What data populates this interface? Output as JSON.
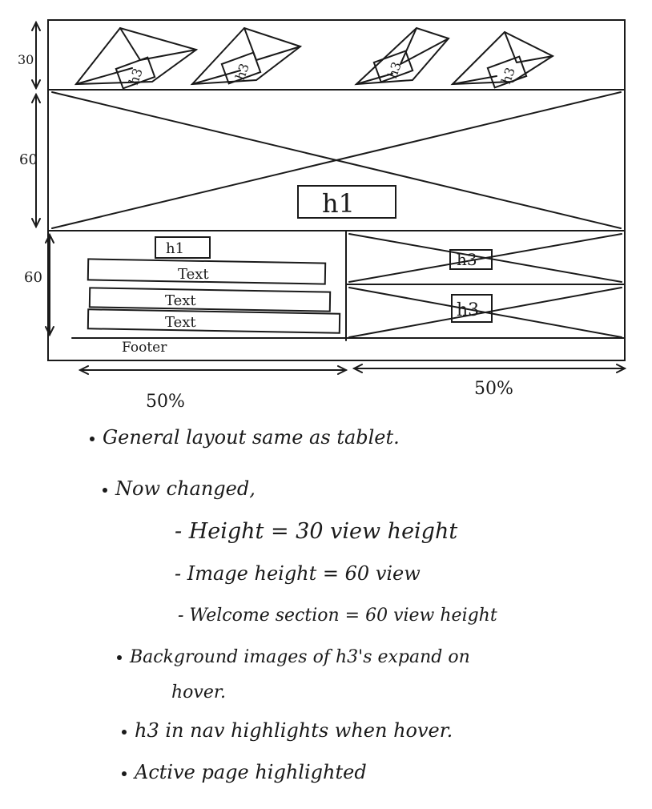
{
  "dimensions": {
    "nav": "30",
    "hero": "60",
    "welcome": "60"
  },
  "nav_items": [
    "h3",
    "h3",
    "h3",
    "h3"
  ],
  "hero_heading": "h1",
  "welcome": {
    "heading": "h1",
    "text_blocks": [
      "Text",
      "Text",
      "Text"
    ]
  },
  "side_headings": [
    "h3",
    "h3"
  ],
  "footer": "Footer",
  "widths": {
    "left": "50%",
    "right": "50%"
  },
  "notes": [
    {
      "text": "General layout same as tablet.",
      "bullet": true
    },
    {
      "text": "Now changed,",
      "bullet": true
    },
    {
      "text": "- Height = 30 view height",
      "bullet": false
    },
    {
      "text": "- Image height = 60 view",
      "bullet": false
    },
    {
      "text": "- Welcome section = 60 view height",
      "bullet": false
    },
    {
      "text": "Background images of h3's expand on",
      "bullet": true
    },
    {
      "text": "hover.",
      "bullet": false
    },
    {
      "text": "h3 in nav highlights when hover.",
      "bullet": true
    },
    {
      "text": "Active page highlighted",
      "bullet": true
    }
  ]
}
